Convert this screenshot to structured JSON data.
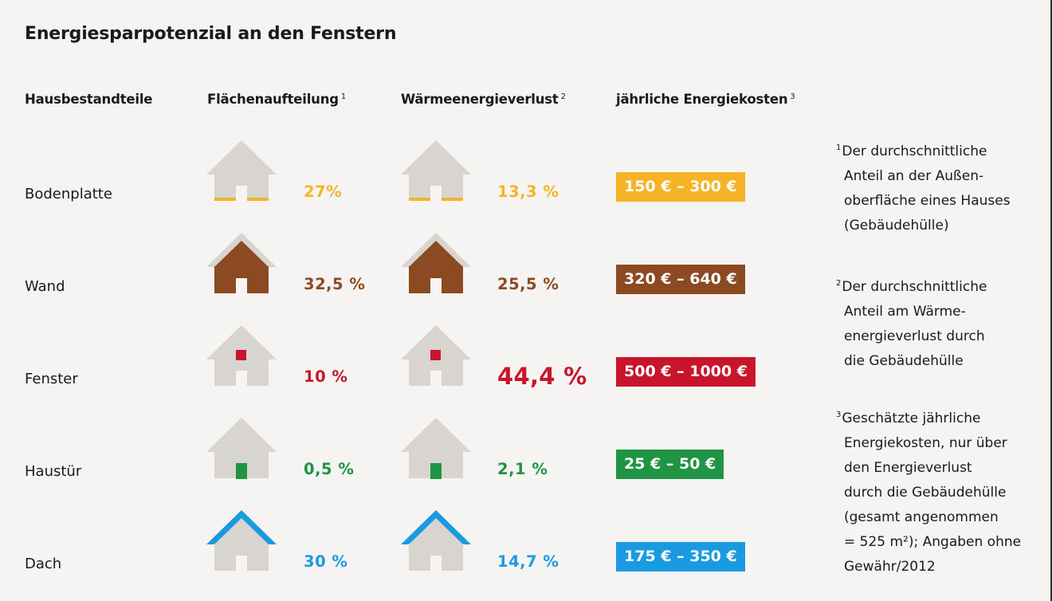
{
  "title": "Energiesparpotenzial an den Fenstern",
  "chart_data": {
    "type": "table",
    "title": "Energiesparpotenzial an den Fenstern",
    "columns": [
      {
        "label": "Hausbestandteile",
        "sup": ""
      },
      {
        "label": "Flächenaufteilung",
        "sup": "1"
      },
      {
        "label": "Wärmeenergieverlust",
        "sup": "2"
      },
      {
        "label": "jährliche Energiekosten",
        "sup": "3"
      }
    ],
    "rows": [
      {
        "part": "Bodenplatte",
        "area_share": "27%",
        "area_value": 27,
        "heat_loss": "13,3 %",
        "heat_loss_value": 13.3,
        "costs": "150 € – 300 €",
        "cost_min": 150,
        "cost_max": 300,
        "color": "#f5b428",
        "highlight": "floor"
      },
      {
        "part": "Wand",
        "area_share": "32,5 %",
        "area_value": 32.5,
        "heat_loss": "25,5 %",
        "heat_loss_value": 25.5,
        "costs": "320 € – 640 €",
        "cost_min": 320,
        "cost_max": 640,
        "color": "#8b4a22",
        "highlight": "wall"
      },
      {
        "part": "Fenster",
        "area_share": "10 %",
        "area_value": 10,
        "heat_loss": "44,4 %",
        "heat_loss_value": 44.4,
        "costs": "500 € – 1000 €",
        "cost_min": 500,
        "cost_max": 1000,
        "color": "#c8152b",
        "highlight": "window"
      },
      {
        "part": "Haustür",
        "area_share": "0,5 %",
        "area_value": 0.5,
        "heat_loss": "2,1 %",
        "heat_loss_value": 2.1,
        "costs": "25 € – 50 €",
        "cost_min": 25,
        "cost_max": 50,
        "color": "#1e9444",
        "highlight": "door"
      },
      {
        "part": "Dach",
        "area_share": "30 %",
        "area_value": 30,
        "heat_loss": "14,7 %",
        "heat_loss_value": 14.7,
        "costs": "175 € – 350 €",
        "cost_min": 175,
        "cost_max": 350,
        "color": "#1a9ae0",
        "highlight": "roof"
      }
    ],
    "house_base_color": "#d8d4cf"
  },
  "footnotes": [
    {
      "sup": "1",
      "lines": [
        "Der durchschnittliche",
        "Anteil an der Außen-",
        "oberfläche eines Hauses",
        "(Gebäudehülle)"
      ]
    },
    {
      "sup": "2",
      "lines": [
        "Der durchschnittliche",
        "Anteil am Wärme-",
        "energieverlust durch",
        "die Gebäudehülle"
      ]
    },
    {
      "sup": "3",
      "lines": [
        "Geschätzte jährliche",
        "Energiekosten, nur über",
        "den Energieverlust",
        "durch die Gebäudehülle",
        "(gesamt angenommen",
        "= 525 m²); Angaben ohne",
        "Gewähr/2012"
      ]
    }
  ]
}
